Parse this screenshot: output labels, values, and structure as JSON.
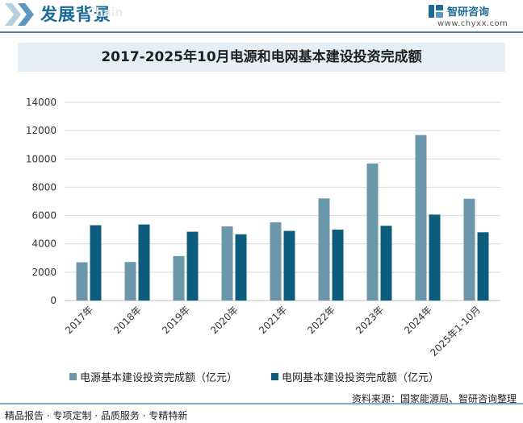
{
  "header": {
    "title": "发展背景",
    "ghost_text": "Chain",
    "brand_name": "智研咨询",
    "brand_url": "www.chyxx.com"
  },
  "colors": {
    "series1": "#6b97ab",
    "series2": "#0d5c7e",
    "accent": "#1a6a96",
    "gridline": "#d9d9d9",
    "title_band": "#e5eef4"
  },
  "chart_data": {
    "type": "bar",
    "title": "2017-2025年10月电源和电网基本建设投资完成额",
    "categories": [
      "2017年",
      "2018年",
      "2019年",
      "2020年",
      "2021年",
      "2022年",
      "2023年",
      "2024年",
      "2025年1-10月"
    ],
    "series": [
      {
        "name": "电源基本建设投资完成额（亿元）",
        "values": [
          2700,
          2720,
          3140,
          5240,
          5530,
          7210,
          9680,
          11690,
          7190
        ]
      },
      {
        "name": "电网基本建设投资完成额（亿元）",
        "values": [
          5320,
          5370,
          4860,
          4680,
          4920,
          5010,
          5280,
          6070,
          4820
        ]
      }
    ],
    "ylim": [
      0,
      14000
    ],
    "yticks": [
      0,
      2000,
      4000,
      6000,
      8000,
      10000,
      12000,
      14000
    ],
    "xlabel": "",
    "ylabel": "",
    "grid": true,
    "legend_position": "bottom"
  },
  "footer": {
    "left": "精品报告 · 专项定制 · 品质服务 · 专精特新",
    "right": "资料来源：国家能源局、智研咨询整理"
  }
}
